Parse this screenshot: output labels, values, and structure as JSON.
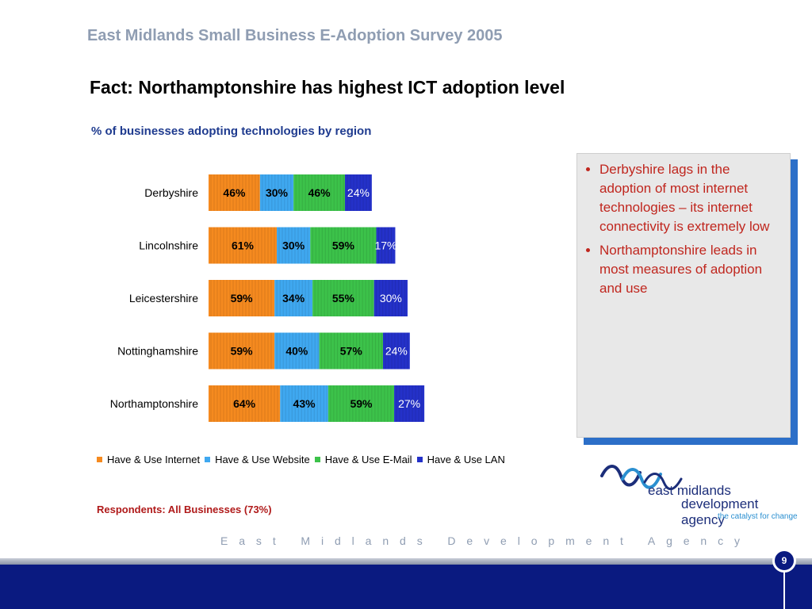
{
  "header": {
    "survey_title": "East Midlands Small Business E-Adoption Survey 2005",
    "fact_title": "Fact: Northamptonshire has highest ICT adoption level"
  },
  "chart_data": {
    "type": "bar",
    "orientation": "horizontal",
    "stacked": true,
    "title": "% of businesses adopting technologies by region",
    "categories": [
      "Derbyshire",
      "Lincolnshire",
      "Leicestershire",
      "Nottinghamshire",
      "Northamptonshire"
    ],
    "series": [
      {
        "name": "Have & Use Internet",
        "values": [
          46,
          61,
          59,
          59,
          64
        ],
        "color": "#f58a1f"
      },
      {
        "name": "Have & Use Website",
        "values": [
          30,
          30,
          34,
          40,
          43
        ],
        "color": "#3fa8f0"
      },
      {
        "name": "Have & Use E-Mail",
        "values": [
          46,
          59,
          55,
          57,
          59
        ],
        "color": "#3cc24a"
      },
      {
        "name": "Have & Use LAN",
        "values": [
          24,
          17,
          30,
          24,
          27
        ],
        "color": "#2431c9"
      }
    ],
    "value_suffix": "%",
    "legend_position": "bottom",
    "grid": false
  },
  "notes": {
    "bullets": [
      "Derbyshire lags in the adoption of most internet technologies – its internet connectivity is extremely low",
      "Northamptonshire leads in most measures of adoption and use"
    ]
  },
  "respondents": "Respondents: All Businesses (73%)",
  "logo": {
    "line1": "east midlands",
    "line2": "development agency",
    "tagline": "the catalyst for change"
  },
  "footer": {
    "agency": "East Midlands Development Agency",
    "page_number": "9"
  }
}
